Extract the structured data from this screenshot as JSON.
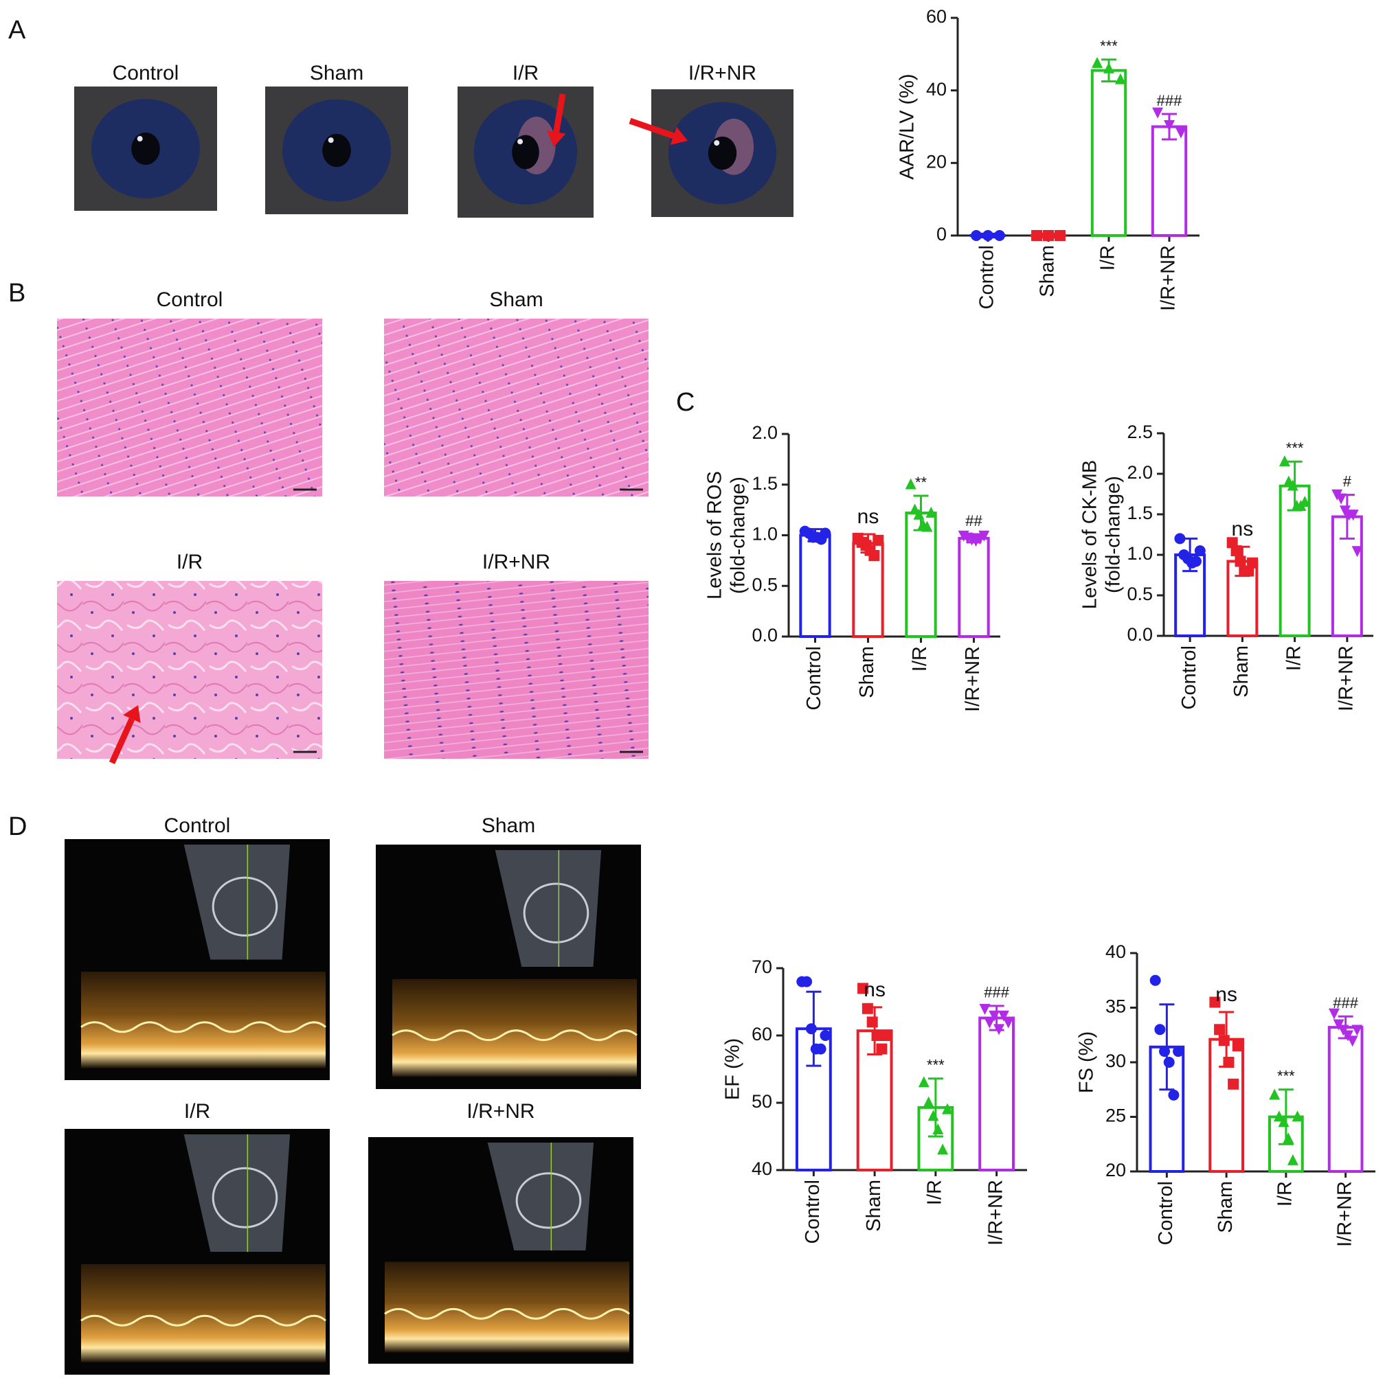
{
  "panels": {
    "A": {
      "label": "A",
      "images": [
        "Control",
        "Sham",
        "I/R",
        "I/R+NR"
      ]
    },
    "B": {
      "label": "B",
      "images": [
        "Control",
        "Sham",
        "I/R",
        "I/R+NR"
      ]
    },
    "C": {
      "label": "C"
    },
    "D": {
      "label": "D",
      "images": [
        "Control",
        "Sham",
        "I/R",
        "I/R+NR"
      ]
    }
  },
  "chart_data": [
    {
      "type": "bar",
      "ylabel": [
        "AAR/LV (%)"
      ],
      "categories": [
        "Control",
        "Sham",
        "I/R",
        "I/R+NR"
      ],
      "colors": [
        "#2323e8",
        "#e8202a",
        "#22c322",
        "#b22ce8"
      ],
      "markers": [
        "circle",
        "square",
        "triangle",
        "triangle-down"
      ],
      "values": [
        0,
        0,
        45.5,
        30
      ],
      "errors": [
        0.5,
        0.5,
        3,
        3.5
      ],
      "points": [
        [
          0,
          0,
          0
        ],
        [
          0,
          0,
          0
        ],
        [
          47.5,
          46,
          43
        ],
        [
          34,
          30.5,
          28.5
        ]
      ],
      "annotations": [
        null,
        null,
        "***",
        "###"
      ],
      "ylim": [
        0,
        60
      ],
      "yticks": [
        0,
        20,
        40,
        60
      ]
    },
    {
      "type": "bar",
      "ylabel": [
        "Levels of ROS",
        "(fold-change)"
      ],
      "categories": [
        "Control",
        "Sham",
        "I/R",
        "I/R+NR"
      ],
      "colors": [
        "#2323e8",
        "#e8202a",
        "#22c322",
        "#b22ce8"
      ],
      "markers": [
        "circle",
        "square",
        "triangle",
        "triangle-down"
      ],
      "values": [
        1.0,
        0.92,
        1.22,
        0.97
      ],
      "errors": [
        0.06,
        0.09,
        0.17,
        0.04
      ],
      "points": [
        [
          1.04,
          1.02,
          0.98,
          0.98,
          0.96,
          1.02
        ],
        [
          0.97,
          0.93,
          0.9,
          0.85,
          0.8,
          0.95
        ],
        [
          1.5,
          1.25,
          1.2,
          1.1,
          1.08,
          1.22
        ],
        [
          1.0,
          0.98,
          0.96,
          0.95,
          0.97,
          1.0
        ]
      ],
      "annotations": [
        null,
        "ns",
        "**",
        "##"
      ],
      "ylim": [
        0,
        2
      ],
      "yticks": [
        {
          "value": 0,
          "label": "0.0"
        },
        0.5,
        {
          "value": 1,
          "label": "1.0"
        },
        1.5,
        {
          "value": 2,
          "label": "2.0"
        }
      ]
    },
    {
      "type": "bar",
      "ylabel": [
        "Levels of CK-MB",
        "(fold-change)"
      ],
      "categories": [
        "Control",
        "Sham",
        "I/R",
        "I/R+NR"
      ],
      "colors": [
        "#2323e8",
        "#e8202a",
        "#22c322",
        "#b22ce8"
      ],
      "markers": [
        "circle",
        "square",
        "triangle",
        "triangle-down"
      ],
      "values": [
        1.0,
        0.92,
        1.85,
        1.47
      ],
      "errors": [
        0.2,
        0.18,
        0.3,
        0.27
      ],
      "points": [
        [
          1.2,
          1.0,
          0.95,
          0.9,
          0.92,
          1.05
        ],
        [
          1.15,
          1.05,
          0.92,
          0.8,
          0.8,
          0.9
        ],
        [
          2.15,
          1.9,
          1.85,
          1.6,
          1.6,
          1.65
        ],
        [
          1.75,
          1.7,
          1.55,
          1.5,
          1.5,
          1.05
        ]
      ],
      "annotations": [
        null,
        "ns",
        "***",
        "#"
      ],
      "ylim": [
        0,
        2.5
      ],
      "yticks": [
        {
          "value": 0,
          "label": "0.0"
        },
        0.5,
        {
          "value": 1,
          "label": "1.0"
        },
        1.5,
        {
          "value": 2,
          "label": "2.0"
        },
        2.5
      ]
    },
    {
      "type": "bar",
      "ylabel": [
        "EF (%)"
      ],
      "categories": [
        "Control",
        "Sham",
        "I/R",
        "I/R+NR"
      ],
      "colors": [
        "#2323e8",
        "#e8202a",
        "#22c322",
        "#b22ce8"
      ],
      "markers": [
        "circle",
        "square",
        "triangle",
        "triangle-down"
      ],
      "values": [
        61,
        60.7,
        49.3,
        62.6
      ],
      "errors": [
        5.5,
        3.5,
        4.3,
        1.8
      ],
      "points": [
        [
          68,
          68,
          61,
          58,
          58,
          60
        ],
        [
          67,
          64,
          62,
          60,
          58,
          60
        ],
        [
          53,
          50,
          48,
          46,
          43,
          49
        ],
        [
          64,
          62,
          63,
          61,
          63,
          62
        ]
      ],
      "annotations": [
        null,
        "ns",
        "***",
        "###"
      ],
      "ylim": [
        40,
        70
      ],
      "yticks": [
        40,
        50,
        60,
        70
      ]
    },
    {
      "type": "bar",
      "ylabel": [
        "FS (%)"
      ],
      "categories": [
        "Control",
        "Sham",
        "I/R",
        "I/R+NR"
      ],
      "colors": [
        "#2323e8",
        "#e8202a",
        "#22c322",
        "#b22ce8"
      ],
      "markers": [
        "circle",
        "square",
        "triangle",
        "triangle-down"
      ],
      "values": [
        31.4,
        32.1,
        25,
        33.2
      ],
      "errors": [
        3.9,
        2.5,
        2.5,
        1.0
      ],
      "points": [
        [
          37.5,
          33,
          31,
          30,
          27,
          31
        ],
        [
          35.5,
          33,
          32,
          30,
          28,
          31.5
        ],
        [
          27,
          25,
          24.5,
          23,
          21,
          25
        ],
        [
          34.5,
          33.5,
          33,
          32.5,
          32,
          33
        ]
      ],
      "annotations": [
        null,
        "ns",
        "***",
        "###"
      ],
      "ylim": [
        20,
        40
      ],
      "yticks": [
        20,
        25,
        30,
        35,
        40
      ]
    }
  ]
}
